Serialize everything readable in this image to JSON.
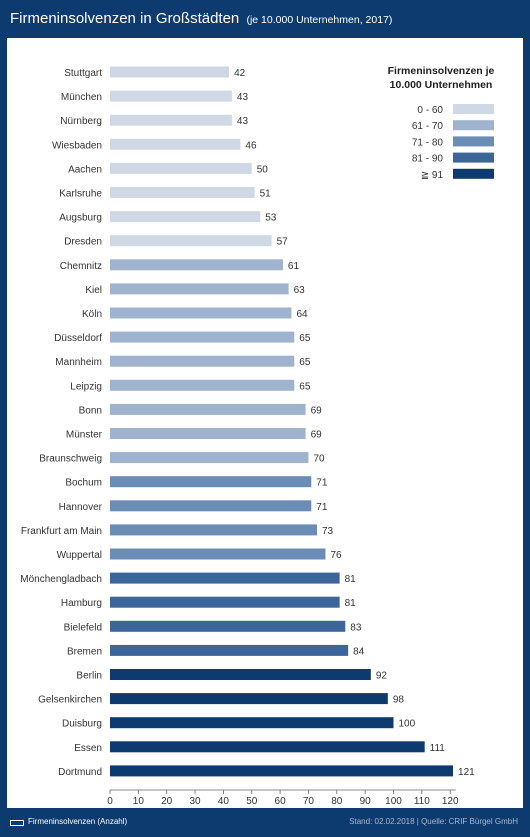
{
  "header": {
    "title": "Firmeninsolvenzen in Großstädten",
    "subtitle": "(je 10.000 Unternehmen, 2017)"
  },
  "footer": {
    "legend_label": "Firmeninsolvenzen (Anzahl)",
    "source": "Stand: 02.02.2018 | Quelle: CRIF Bürgel GmbH"
  },
  "chart_data": {
    "type": "bar",
    "orientation": "horizontal",
    "title": "Firmeninsolvenzen in Großstädten",
    "subtitle": "(je 10.000 Unternehmen, 2017)",
    "categories": [
      "Stuttgart",
      "München",
      "Nürnberg",
      "Wiesbaden",
      "Aachen",
      "Karlsruhe",
      "Augsburg",
      "Dresden",
      "Chemnitz",
      "Kiel",
      "Köln",
      "Düsseldorf",
      "Mannheim",
      "Leipzig",
      "Bonn",
      "Münster",
      "Braunschweig",
      "Bochum",
      "Hannover",
      "Frankfurt am Main",
      "Wuppertal",
      "Mönchengladbach",
      "Hamburg",
      "Bielefeld",
      "Bremen",
      "Berlin",
      "Gelsenkirchen",
      "Duisburg",
      "Essen",
      "Dortmund"
    ],
    "values": [
      42,
      43,
      43,
      46,
      50,
      51,
      53,
      57,
      61,
      63,
      64,
      65,
      65,
      65,
      69,
      69,
      70,
      71,
      71,
      73,
      76,
      81,
      81,
      83,
      84,
      92,
      98,
      100,
      111,
      121
    ],
    "xlim": [
      0,
      125
    ],
    "xticks": [
      0,
      10,
      20,
      30,
      40,
      50,
      60,
      70,
      80,
      90,
      100,
      110,
      120
    ],
    "legend_title": "Firmeninsolvenzen je 10.000 Unternehmen",
    "legend_position": "top-right",
    "color_classes": [
      {
        "label": "0 - 60",
        "min": 0,
        "max": 60,
        "color": "#cfd9e6"
      },
      {
        "label": "61 - 70",
        "min": 61,
        "max": 70,
        "color": "#9fb3ce"
      },
      {
        "label": "71 - 80",
        "min": 71,
        "max": 80,
        "color": "#6b8cb5"
      },
      {
        "label": "81 - 90",
        "min": 81,
        "max": 90,
        "color": "#3c6599"
      },
      {
        "label": "≧ 91",
        "min": 91,
        "max": 9999,
        "color": "#0d3b6f"
      }
    ],
    "series_name": "Firmeninsolvenzen (Anzahl)",
    "grid": false
  }
}
